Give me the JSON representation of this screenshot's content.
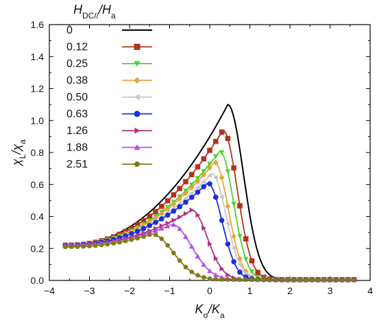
{
  "chart_data": {
    "type": "line",
    "xlabel": {
      "main": "K",
      "sub": "σ",
      "sep": "/",
      "main2": "K",
      "sub2": "a"
    },
    "ylabel": {
      "main": "χ",
      "sub": "L",
      "sep": "/",
      "main2": "χ",
      "sub2": "a"
    },
    "xlim": [
      -4,
      4
    ],
    "ylim": [
      0.0,
      1.6
    ],
    "xticks": [
      -4,
      -3,
      -2,
      -1,
      0,
      1,
      2,
      3,
      4
    ],
    "yticks": [
      0.0,
      0.2,
      0.4,
      0.6,
      0.8,
      1.0,
      1.2,
      1.4,
      1.6
    ],
    "xtick_labels": [
      "−4",
      "−3",
      "−2",
      "−1",
      "0",
      "1",
      "2",
      "3",
      "4"
    ],
    "ytick_labels": [
      "0.0",
      "0.2",
      "0.4",
      "0.6",
      "0.8",
      "1.0",
      "1.2",
      "1.4",
      "1.6"
    ],
    "grid": false,
    "legend": {
      "placement": "top-left",
      "title": {
        "main": "H",
        "sub": "DC//",
        "sep": "/",
        "main2": "H",
        "sub2": "a"
      }
    },
    "x_range": [
      -3.6,
      3.6
    ],
    "series": [
      {
        "name": "0",
        "color": "#000000",
        "marker": "none",
        "peak_x": 0.45,
        "peak_y": 1.1,
        "width_left": 1.6,
        "width_right": 0.55,
        "tail": 0.2,
        "left_y": 0.22
      },
      {
        "name": "0.12",
        "color": "#b5321f",
        "marker": "square",
        "peak_x": 0.33,
        "peak_y": 0.94,
        "width_left": 1.55,
        "width_right": 0.5,
        "tail": 0.2,
        "left_y": 0.22
      },
      {
        "name": "0.25",
        "color": "#4fd12a",
        "marker": "triangle-down",
        "peak_x": 0.25,
        "peak_y": 0.81,
        "width_left": 1.5,
        "width_right": 0.48,
        "tail": 0.2,
        "left_y": 0.22
      },
      {
        "name": "0.38",
        "color": "#e3a33a",
        "marker": "diamond",
        "peak_x": 0.12,
        "peak_y": 0.74,
        "width_left": 1.45,
        "width_right": 0.48,
        "tail": 0.2,
        "left_y": 0.22
      },
      {
        "name": "0.50",
        "color": "#c8c8c8",
        "marker": "triangle-left",
        "peak_x": 0.05,
        "peak_y": 0.67,
        "width_left": 1.45,
        "width_right": 0.5,
        "tail": 0.2,
        "left_y": 0.22
      },
      {
        "name": "0.63",
        "color": "#1a2fe0",
        "marker": "circle",
        "peak_x": -0.05,
        "peak_y": 0.61,
        "width_left": 1.4,
        "width_right": 0.5,
        "tail": 0.2,
        "left_y": 0.22
      },
      {
        "name": "1.26",
        "color": "#b0317f",
        "marker": "triangle-right",
        "peak_x": -0.45,
        "peak_y": 0.44,
        "width_left": 1.6,
        "width_right": 0.55,
        "tail": 0.2,
        "left_y": 0.22
      },
      {
        "name": "1.88",
        "color": "#b64fe0",
        "marker": "triangle-up",
        "peak_x": -0.95,
        "peak_y": 0.35,
        "width_left": 1.7,
        "width_right": 0.7,
        "tail": 0.2,
        "left_y": 0.22
      },
      {
        "name": "2.51",
        "color": "#7c7c18",
        "marker": "pentagon",
        "peak_x": -1.45,
        "peak_y": 0.29,
        "width_left": 1.8,
        "width_right": 0.75,
        "tail": 0.2,
        "left_y": 0.21
      }
    ]
  }
}
